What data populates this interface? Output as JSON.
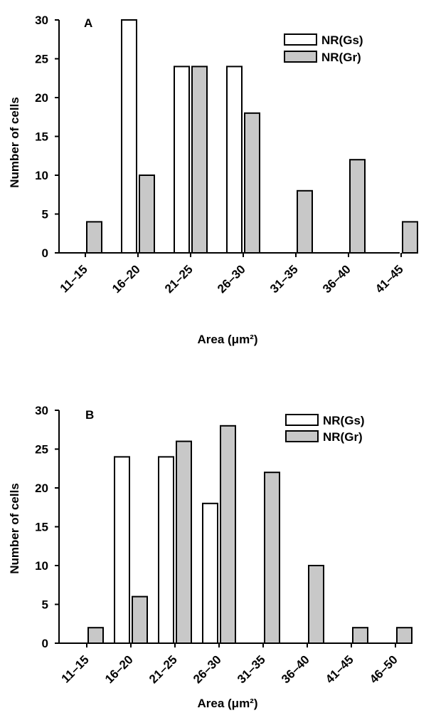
{
  "chart_data": [
    {
      "type": "bar",
      "panel_label": "A",
      "categories": [
        "11–15",
        "16–20",
        "21–25",
        "26–30",
        "31–35",
        "36–40",
        "41–45"
      ],
      "series": [
        {
          "name": "NR(Gs)",
          "values": [
            0,
            30,
            24,
            24,
            0,
            0,
            0
          ],
          "color": "#ffffff"
        },
        {
          "name": "NR(Gr)",
          "values": [
            4,
            10,
            24,
            18,
            8,
            12,
            4
          ],
          "color": "#c8c8c8"
        }
      ],
      "xlabel": "Area (μm²)",
      "ylabel": "Number of cells",
      "ylim": [
        0,
        30
      ],
      "yticks": [
        "0",
        "5",
        "10",
        "15",
        "20",
        "25",
        "30"
      ],
      "grid": false,
      "legend_position": "top-right"
    },
    {
      "type": "bar",
      "panel_label": "B",
      "categories": [
        "11–15",
        "16–20",
        "21–25",
        "26–30",
        "31–35",
        "36–40",
        "41–45",
        "46–50"
      ],
      "series": [
        {
          "name": "NR(Gs)",
          "values": [
            0,
            24,
            24,
            18,
            0,
            0,
            0,
            0
          ],
          "color": "#ffffff"
        },
        {
          "name": "NR(Gr)",
          "values": [
            2,
            6,
            26,
            28,
            22,
            10,
            2,
            2
          ],
          "color": "#c8c8c8"
        }
      ],
      "xlabel": "Area (μm²)",
      "ylabel": "Number of cells",
      "ylim": [
        0,
        30
      ],
      "yticks": [
        "0",
        "5",
        "10",
        "15",
        "20",
        "25",
        "30"
      ],
      "grid": false,
      "legend_position": "top-right"
    }
  ]
}
